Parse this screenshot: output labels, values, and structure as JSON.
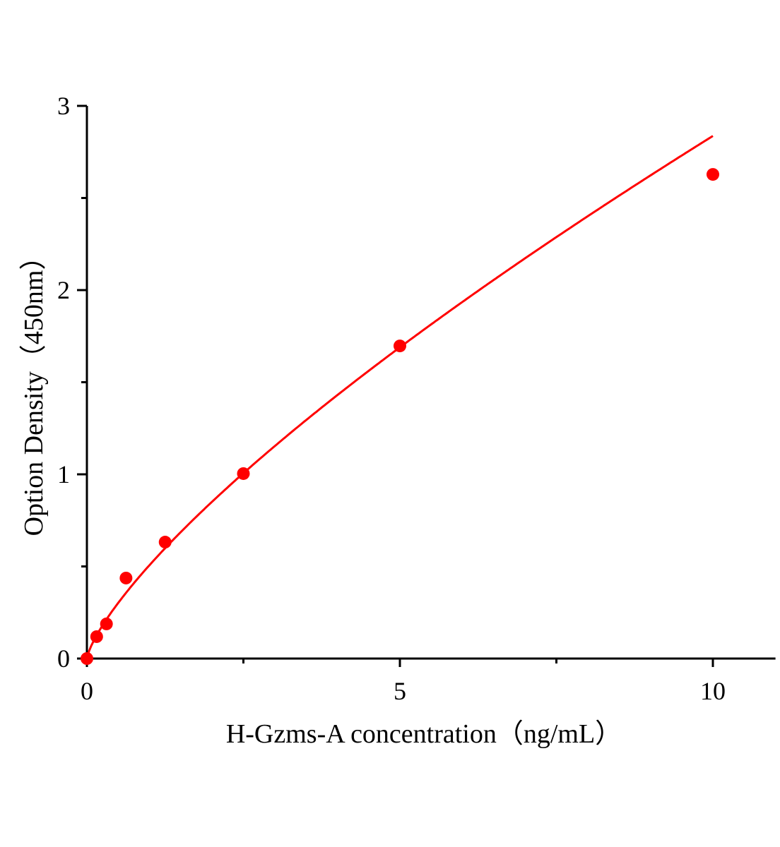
{
  "chart_data": {
    "type": "scatter",
    "title": "",
    "xlabel": "H-Gzms-A concentration（ng/mL）",
    "ylabel": "Option Density（450nm）",
    "xlim": [
      0,
      11
    ],
    "ylim": [
      0,
      3
    ],
    "x_ticks": [
      0,
      5,
      10
    ],
    "x_tick_labels": [
      "0",
      "5",
      "10"
    ],
    "x_minor_ticks": [
      2.5,
      7.5
    ],
    "y_ticks": [
      0,
      1,
      2,
      3
    ],
    "y_tick_labels": [
      "0",
      "1",
      "2",
      "3"
    ],
    "y_minor_ticks": [
      0.5,
      1.5,
      2.5
    ],
    "grid": false,
    "legend": "none",
    "color": "#ff0000",
    "points": {
      "x": [
        0,
        0.156,
        0.3125,
        0.625,
        1.25,
        2.5,
        5,
        10
      ],
      "y": [
        0.0,
        0.119,
        0.188,
        0.437,
        0.632,
        1.004,
        1.697,
        2.628
      ]
    },
    "fit_curve": true
  }
}
